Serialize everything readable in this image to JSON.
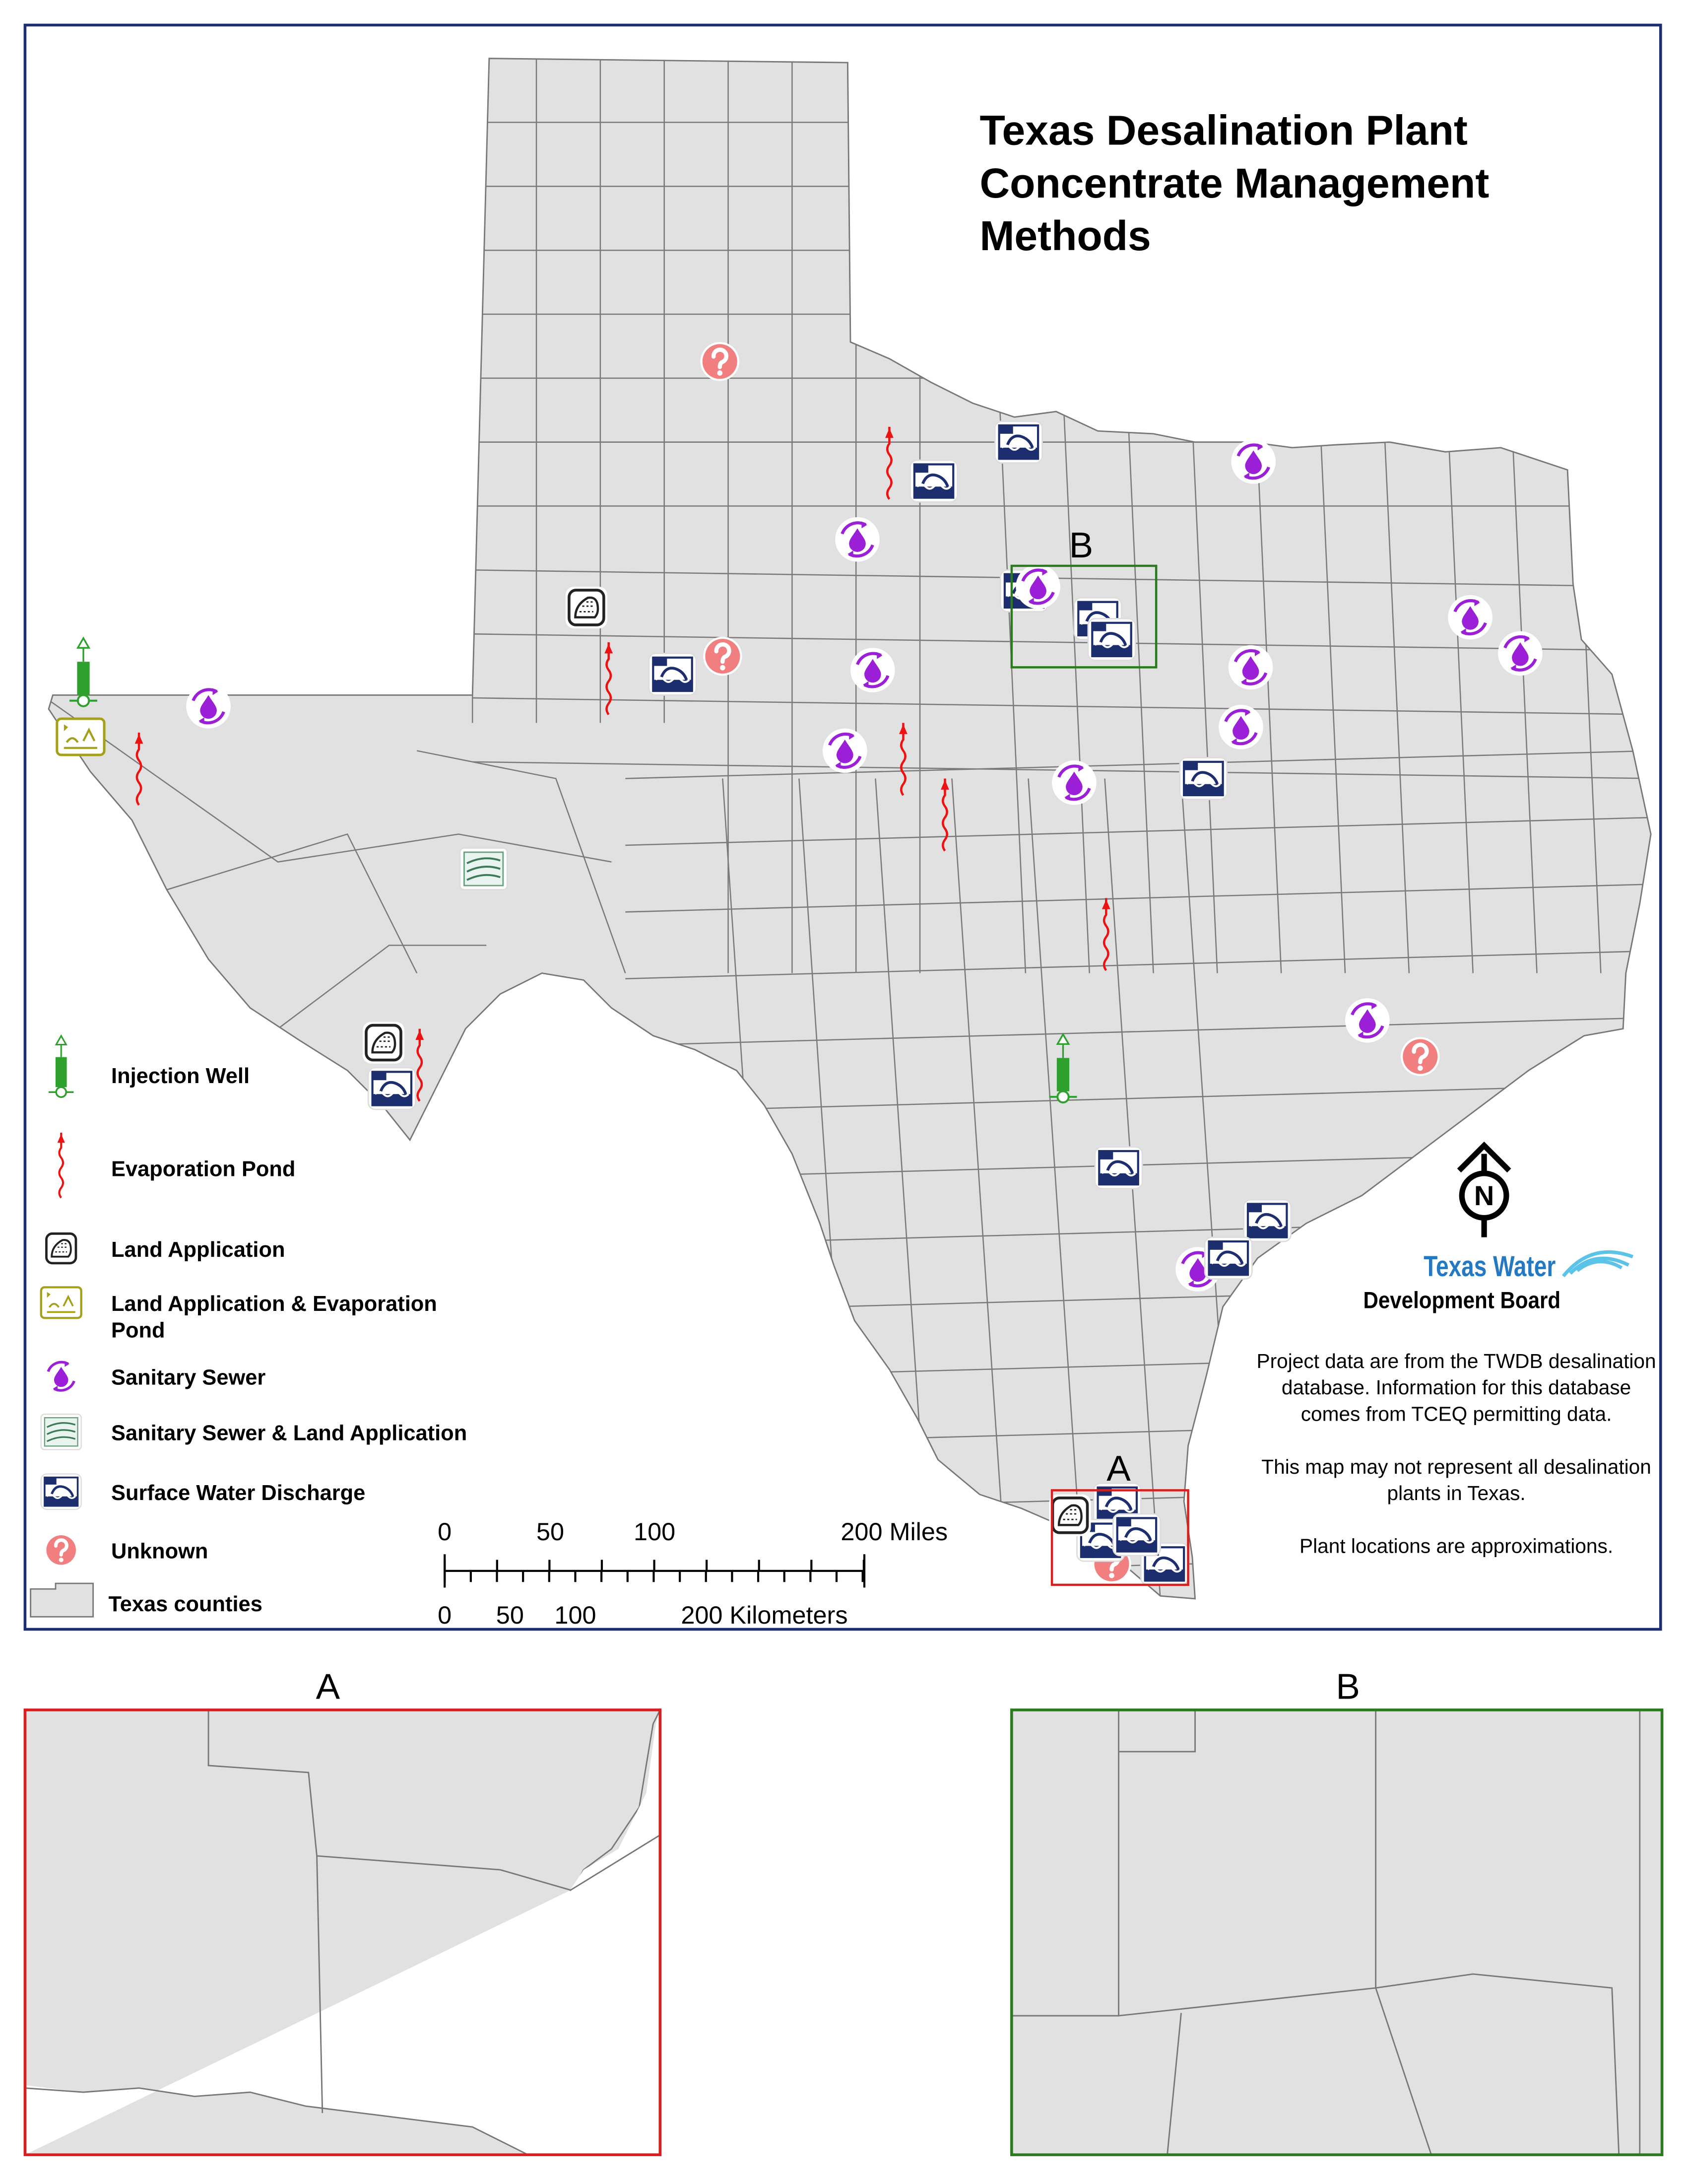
{
  "title_lines": [
    "Texas Desalination Plant",
    "Concentrate Management",
    "Methods"
  ],
  "legend": [
    {
      "lines": [
        "Injection Well"
      ]
    },
    {
      "lines": [
        "Evaporation Pond"
      ]
    },
    {
      "lines": [
        "Land Application"
      ]
    },
    {
      "lines": [
        "Land Application & Evaporation",
        "Pond"
      ]
    },
    {
      "lines": [
        "Sanitary Sewer"
      ]
    },
    {
      "lines": [
        "Sanitary Sewer & Land Application"
      ]
    },
    {
      "lines": [
        "Surface Water Discharge"
      ]
    },
    {
      "lines": [
        "Unknown"
      ]
    },
    {
      "lines": [
        "Texas counties"
      ]
    }
  ],
  "scale_bar": {
    "miles_labels": [
      "0",
      "50",
      "100",
      "200 Miles"
    ],
    "km_labels": [
      "0",
      "50",
      "100",
      "200 Kilometers"
    ]
  },
  "north_arrow": "N",
  "logo": {
    "line1": "Texas Water",
    "line2": "Development Board"
  },
  "notes": [
    "Project data are from the TWDB desalination database. Information for this database comes from TCEQ permitting data.",
    "This map may not represent all desalination plants in Texas.",
    "Plant locations are approximations."
  ],
  "insets": [
    {
      "label": "A"
    },
    {
      "label": "B"
    }
  ]
}
